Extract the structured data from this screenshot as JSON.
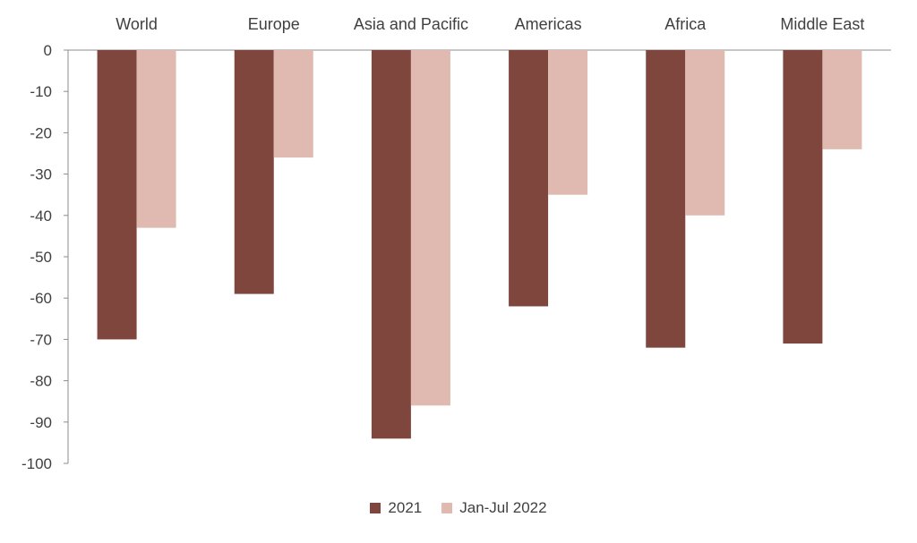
{
  "chart_data": {
    "type": "bar",
    "categories": [
      "World",
      "Europe",
      "Asia and Pacific",
      "Americas",
      "Africa",
      "Middle East"
    ],
    "series": [
      {
        "name": "2021",
        "values": [
          -70,
          -59,
          -94,
          -62,
          -72,
          -71
        ],
        "color": "#7f463e"
      },
      {
        "name": "Jan-Jul 2022",
        "values": [
          -43,
          -26,
          -86,
          -35,
          -40,
          -24
        ],
        "color": "#e0bab0"
      }
    ],
    "ylim": [
      -100,
      0
    ],
    "yticks": [
      0,
      -10,
      -20,
      -30,
      -40,
      -50,
      -60,
      -70,
      -80,
      -90,
      -100
    ],
    "grid": false,
    "legend_position": "bottom"
  }
}
